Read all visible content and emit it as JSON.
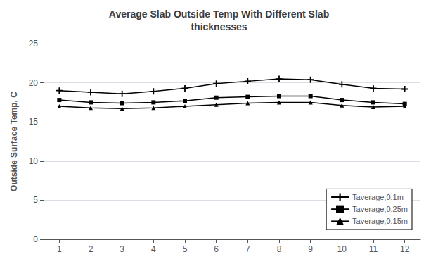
{
  "chart_data": {
    "type": "line",
    "title": "Average Slab Outside Temp With Different Slab\nthicknesses",
    "ylabel": "Outside Surface Temp, C",
    "x": [
      1,
      2,
      3,
      4,
      5,
      6,
      7,
      8,
      9,
      10,
      11,
      12
    ],
    "series": [
      {
        "name": "Taverage,0.1m",
        "color": "#000000",
        "marker": "plus",
        "values": [
          19.0,
          18.8,
          18.6,
          18.9,
          19.3,
          19.9,
          20.2,
          20.5,
          20.4,
          19.8,
          19.3,
          19.2
        ]
      },
      {
        "name": "Taverage,0.25m",
        "color": "#000000",
        "marker": "square",
        "values": [
          17.8,
          17.5,
          17.4,
          17.5,
          17.7,
          18.1,
          18.2,
          18.3,
          18.3,
          17.8,
          17.5,
          17.3
        ]
      },
      {
        "name": "Taverage,0.15m",
        "color": "#000000",
        "marker": "triangle",
        "values": [
          17.0,
          16.8,
          16.7,
          16.8,
          17.0,
          17.2,
          17.4,
          17.5,
          17.5,
          17.1,
          16.9,
          17.0
        ]
      }
    ],
    "xlim": [
      0.5,
      12.5
    ],
    "xticks": [
      1,
      2,
      3,
      4,
      5,
      6,
      7,
      8,
      9,
      10,
      11,
      12
    ],
    "ylim": [
      0,
      25
    ],
    "yticks": [
      0,
      5,
      10,
      15,
      20,
      25
    ],
    "grid": true,
    "legend": "lower right"
  }
}
